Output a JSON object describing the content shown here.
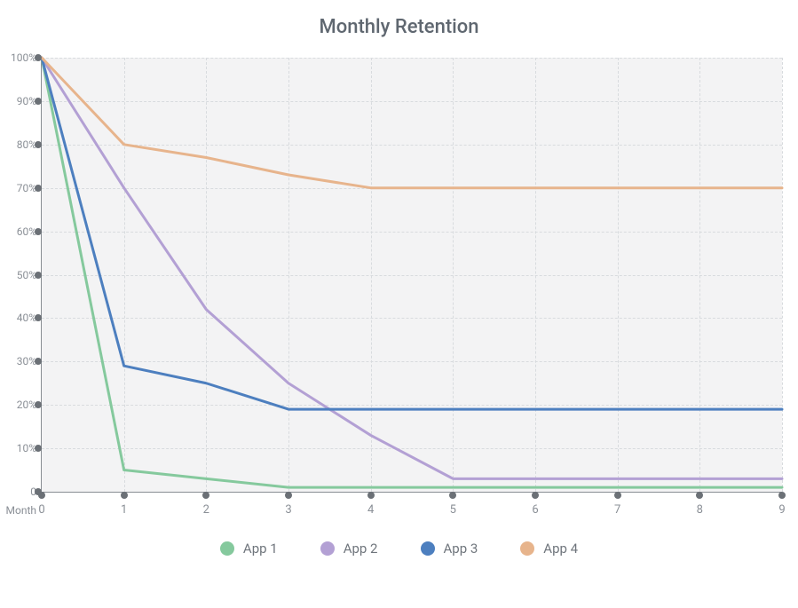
{
  "chart": {
    "type": "line",
    "title": "Monthly Retention",
    "title_fontsize": 22,
    "title_color": "#5f6770",
    "background_color": "#ffffff",
    "plot_background_color": "#f3f3f4",
    "axis_color": "#888d93",
    "tick_dot_color": "#6b7076",
    "tick_dot_radius": 4,
    "grid_color": "#d8dbde",
    "grid_dashed": true,
    "label_color": "#8a8f96",
    "label_fontsize": 12,
    "x_title": "Month",
    "xlim": [
      0,
      9
    ],
    "x_ticks": [
      0,
      1,
      2,
      3,
      4,
      5,
      6,
      7,
      8,
      9
    ],
    "x_tick_labels": [
      "0",
      "1",
      "2",
      "3",
      "4",
      "5",
      "6",
      "7",
      "8",
      "9"
    ],
    "ylim": [
      0,
      100
    ],
    "y_ticks": [
      0,
      10,
      20,
      30,
      40,
      50,
      60,
      70,
      80,
      90,
      100
    ],
    "y_tick_labels": [
      "0",
      "10%",
      "20%",
      "30%",
      "40%",
      "50%",
      "60%",
      "70%",
      "80%",
      "90%",
      "100%"
    ],
    "line_width": 3,
    "series": [
      {
        "label": "App 1",
        "color": "#85c99d",
        "swatch_color": "#85c99d",
        "x": [
          0,
          1,
          2,
          3,
          4,
          5,
          6,
          7,
          8,
          9
        ],
        "y": [
          100,
          5,
          3,
          1,
          1,
          1,
          1,
          1,
          1,
          1
        ]
      },
      {
        "label": "App 2",
        "color": "#b3a0d4",
        "swatch_color": "#b3a0d4",
        "x": [
          0,
          1,
          2,
          3,
          4,
          5,
          6,
          7,
          8,
          9
        ],
        "y": [
          100,
          70,
          42,
          25,
          13,
          3,
          3,
          3,
          3,
          3
        ]
      },
      {
        "label": "App 3",
        "color": "#4d7fbf",
        "swatch_color": "#4d7fbf",
        "x": [
          0,
          1,
          2,
          3,
          4,
          5,
          6,
          7,
          8,
          9
        ],
        "y": [
          100,
          29,
          25,
          19,
          19,
          19,
          19,
          19,
          19,
          19
        ]
      },
      {
        "label": "App 4",
        "color": "#e7b48c",
        "swatch_color": "#e7b48c",
        "x": [
          0,
          1,
          2,
          3,
          4,
          5,
          6,
          7,
          8,
          9
        ],
        "y": [
          100,
          80,
          77,
          73,
          70,
          70,
          70,
          70,
          70,
          70
        ]
      }
    ],
    "legend": {
      "position": "bottom",
      "fontsize": 15,
      "text_color": "#6f757c",
      "swatch_radius": 8
    }
  }
}
